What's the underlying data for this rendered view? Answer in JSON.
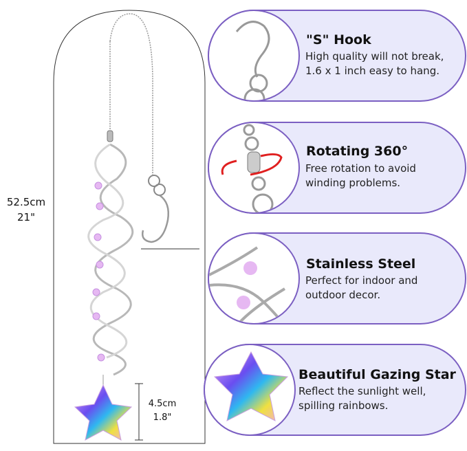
{
  "colors": {
    "accent_border": "#7b5fc2",
    "pill_fill": "#e9e9fb",
    "rotation_arrow": "#e02020"
  },
  "dimensions": {
    "total_length_cm": "52.5cm",
    "total_length_in": "21\"",
    "star_size_cm": "4.5cm",
    "star_size_in": "1.8\""
  },
  "features": [
    {
      "title": "\"S\" Hook",
      "desc_line1": "High quality will not break,",
      "desc_line2": "1.6 x 1 inch easy to hang.",
      "icon": "s-hook-icon"
    },
    {
      "title": "Rotating 360°",
      "desc_line1": "Free rotation to avoid",
      "desc_line2": "winding problems.",
      "icon": "swivel-icon"
    },
    {
      "title": "Stainless Steel",
      "desc_line1": "Perfect for indoor and",
      "desc_line2": "outdoor decor.",
      "icon": "spiral-icon"
    },
    {
      "title": "Beautiful Gazing Star",
      "desc_line1": "Reflect the sunlight well,",
      "desc_line2": "spilling rainbows.",
      "icon": "crystal-star-icon"
    }
  ]
}
